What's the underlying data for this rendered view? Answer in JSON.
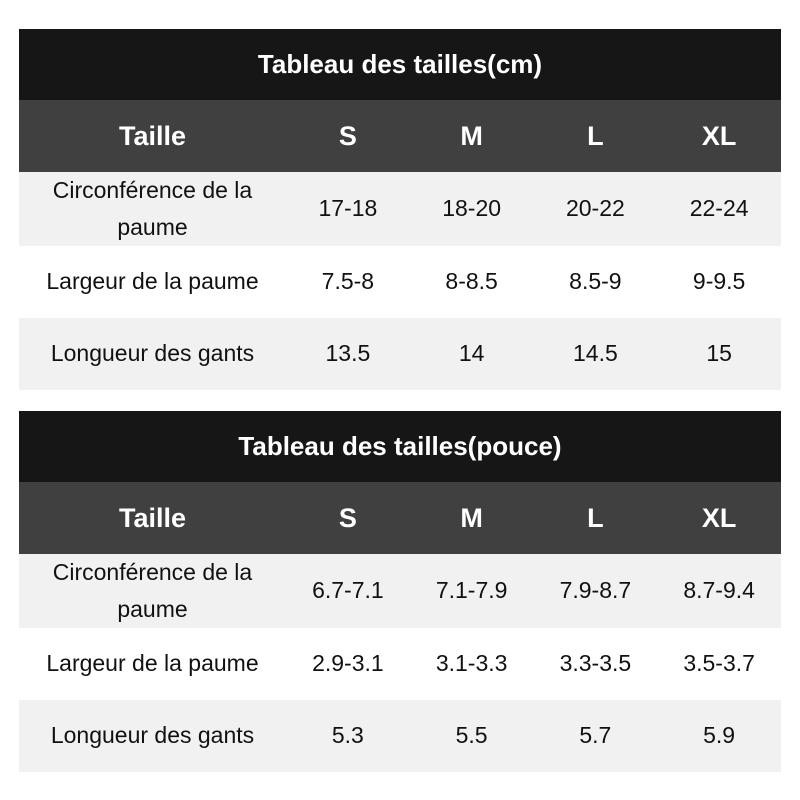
{
  "tables": [
    {
      "title": "Tableau des tailles(cm)",
      "header": [
        "Taille",
        "S",
        "M",
        "L",
        "XL"
      ],
      "rows": [
        {
          "label": "Circonférence de la paume",
          "values": [
            "17-18",
            "18-20",
            "20-22",
            "22-24"
          ]
        },
        {
          "label": "Largeur de la paume",
          "values": [
            "7.5-8",
            "8-8.5",
            "8.5-9",
            "9-9.5"
          ]
        },
        {
          "label": "Longueur des gants",
          "values": [
            "13.5",
            "14",
            "14.5",
            "15"
          ]
        }
      ]
    },
    {
      "title": "Tableau des tailles(pouce)",
      "header": [
        "Taille",
        "S",
        "M",
        "L",
        "XL"
      ],
      "rows": [
        {
          "label": "Circonférence de la paume",
          "values": [
            "6.7-7.1",
            "7.1-7.9",
            "7.9-8.7",
            "8.7-9.4"
          ]
        },
        {
          "label": "Largeur de la paume",
          "values": [
            "2.9-3.1",
            "3.1-3.3",
            "3.3-3.5",
            "3.5-3.7"
          ]
        },
        {
          "label": "Longueur des gants",
          "values": [
            "5.3",
            "5.5",
            "5.7",
            "5.9"
          ]
        }
      ]
    }
  ],
  "colors": {
    "title_bg": "#161616",
    "header_bg": "#404040",
    "stripe_bg": "#f1f1f1",
    "text_light": "#ffffff"
  }
}
